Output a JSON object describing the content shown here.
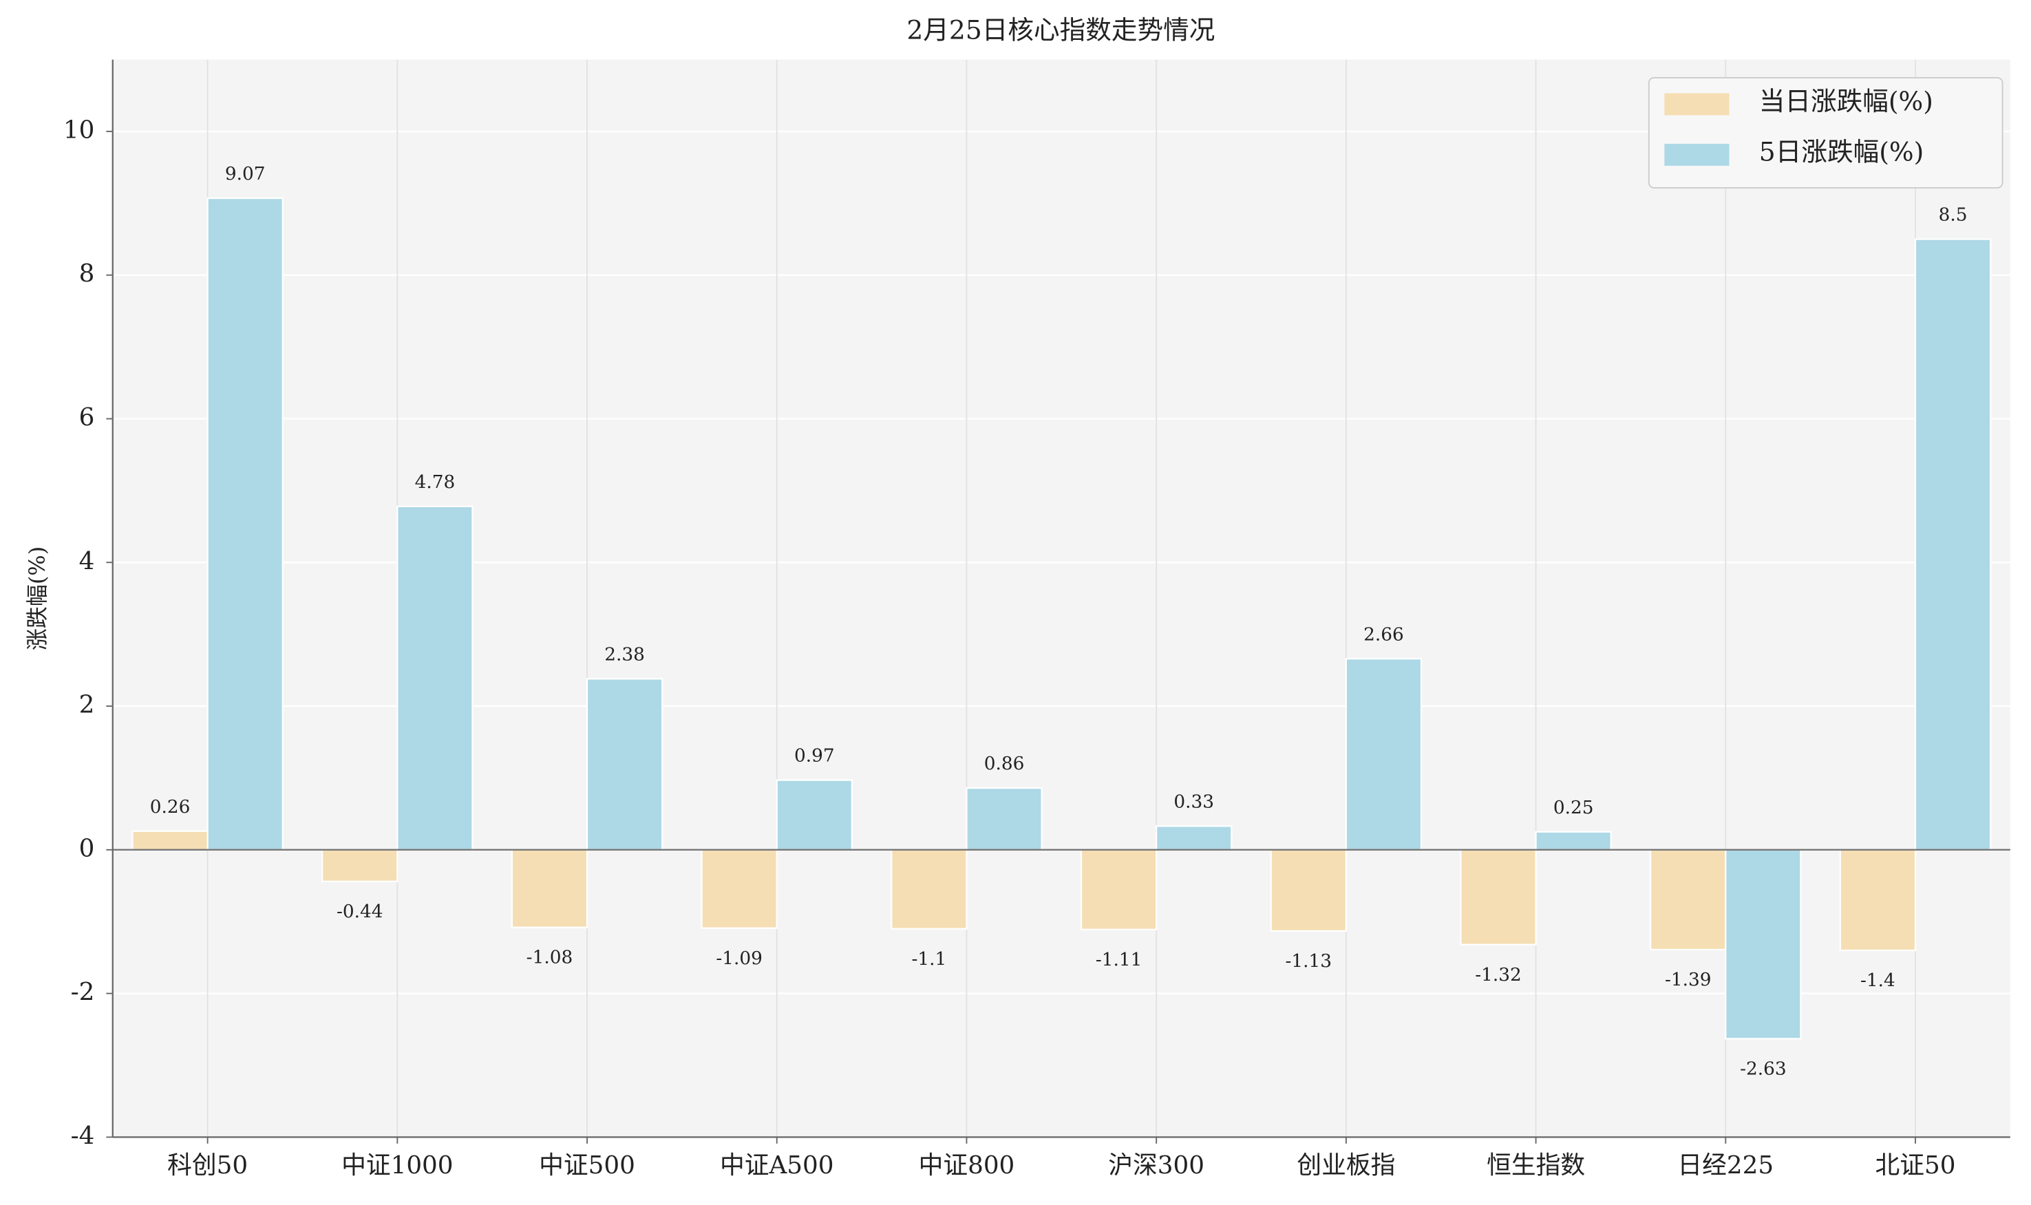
{
  "chart_data": {
    "type": "bar",
    "title": "2月25日核心指数走势情况",
    "y_label": "涨跌幅(%)",
    "categories": [
      "科创50",
      "中证1000",
      "中证500",
      "中证A500",
      "中证800",
      "沪深300",
      "创业板指",
      "恒生指数",
      "日经225",
      "北证50"
    ],
    "series": [
      {
        "name": "当日涨跌幅(%)",
        "color": "#f5deb3",
        "values": [
          0.26,
          -0.44,
          -1.08,
          -1.09,
          -1.1,
          -1.11,
          -1.13,
          -1.32,
          -1.39,
          -1.4
        ]
      },
      {
        "name": "5日涨跌幅(%)",
        "color": "#add8e6",
        "values": [
          9.07,
          4.78,
          2.38,
          0.97,
          0.86,
          0.33,
          2.66,
          0.25,
          -2.63,
          8.5
        ]
      }
    ],
    "ylim": [
      -4,
      11
    ],
    "yticks": [
      -4,
      -2,
      0,
      2,
      4,
      6,
      8,
      10
    ],
    "grid": true,
    "legend": "upper right"
  }
}
